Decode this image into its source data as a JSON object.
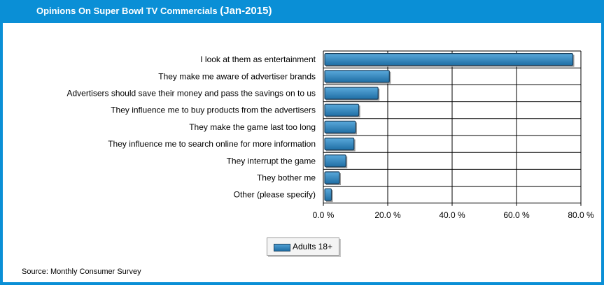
{
  "header": {
    "title_main": "Opinions On Super Bowl TV Commercials",
    "title_date": "(Jan-2015)"
  },
  "colors": {
    "frame": "#0a8fd6",
    "bar_top": "#5aa9db",
    "bar_bottom": "#1f6ea4",
    "bar_border": "#1a3f5c"
  },
  "chart_data": {
    "type": "bar",
    "orientation": "horizontal",
    "categories": [
      "I look at them as entertainment",
      "They make me aware of advertiser brands",
      "Advertisers should save their money and pass the savings on to us",
      "They influence me to buy products from the advertisers",
      "They make the game last too long",
      "They influence me to search online for more information",
      "They interrupt the game",
      "They bother me",
      "Other (please specify)"
    ],
    "series": [
      {
        "name": "Adults 18+",
        "values": [
          77.5,
          20.5,
          17.0,
          11.0,
          10.0,
          9.5,
          7.0,
          5.0,
          2.5
        ]
      }
    ],
    "xlim": [
      0,
      80
    ],
    "xticks": [
      "0.0 %",
      "20.0 %",
      "40.0 %",
      "60.0 %",
      "80.0 %"
    ],
    "grid": true,
    "legend": "bottom-center"
  },
  "legend": {
    "label": "Adults 18+"
  },
  "footer": {
    "source": "Source: Monthly Consumer Survey"
  }
}
